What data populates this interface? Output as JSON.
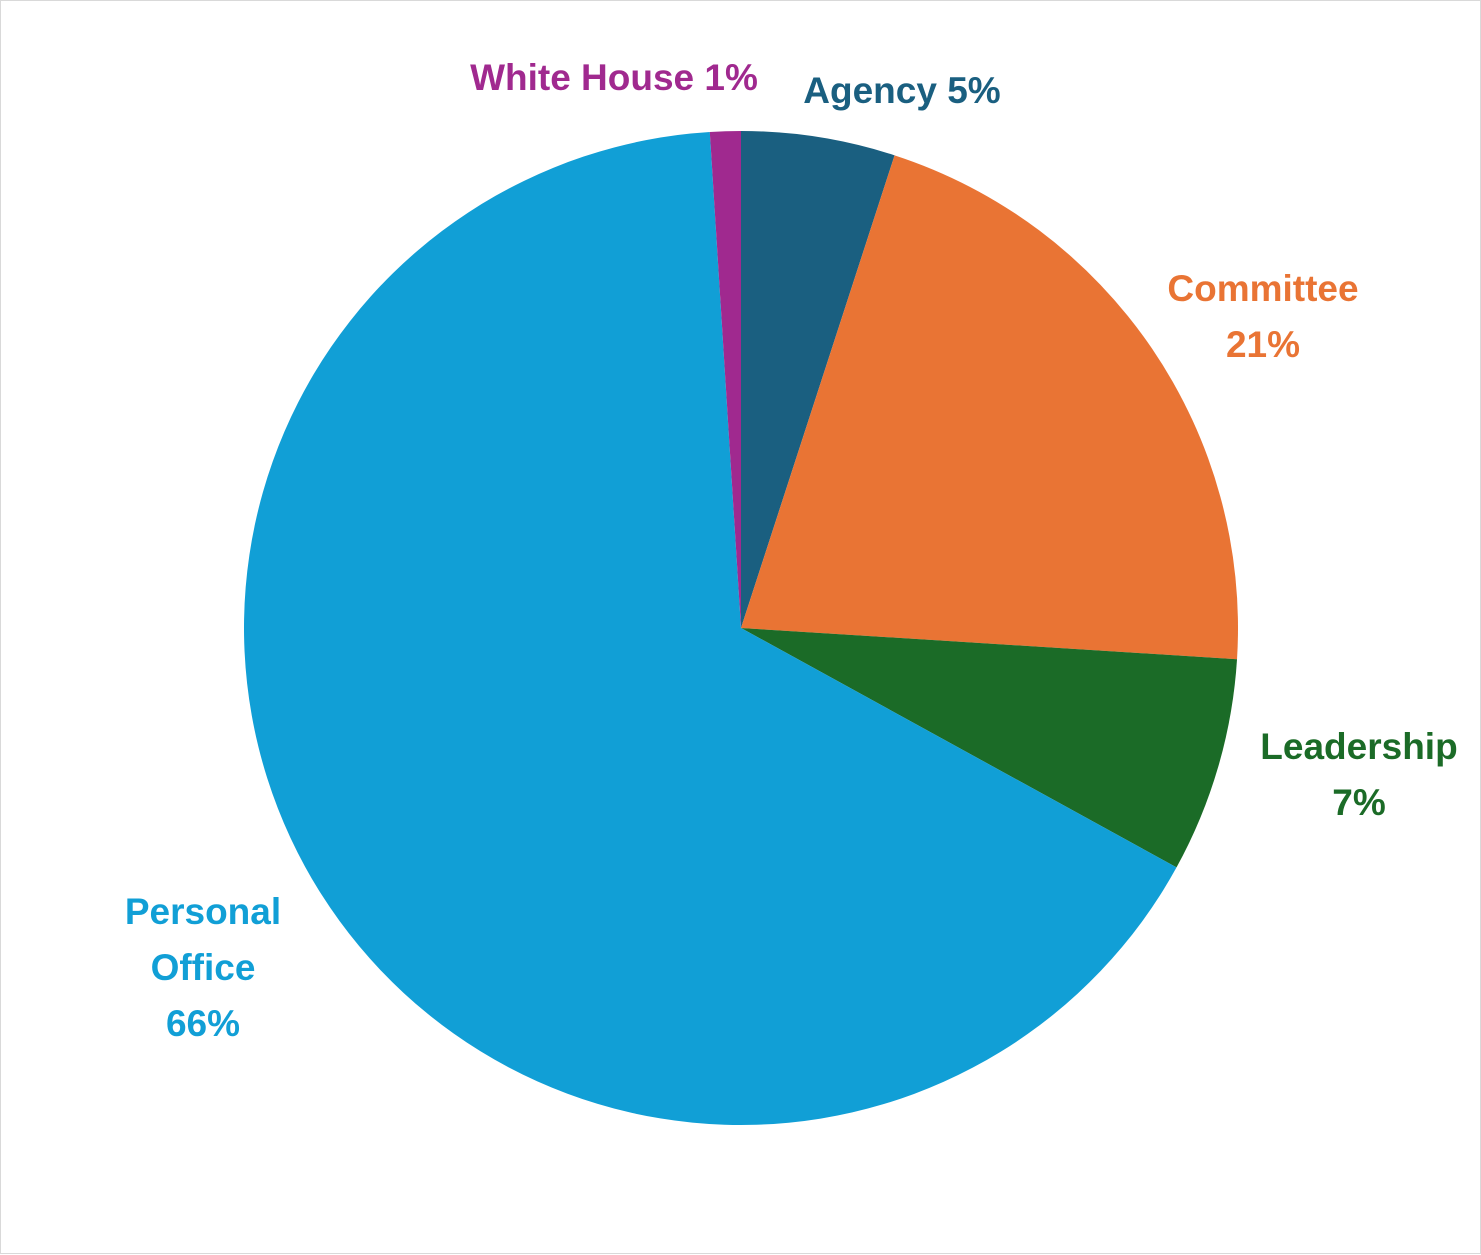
{
  "chart_data": {
    "type": "pie",
    "title": "",
    "slices": [
      {
        "name": "Agency",
        "value": 5,
        "pct_label": "5%",
        "color": "#1a5f80"
      },
      {
        "name": "Committee",
        "value": 21,
        "pct_label": "21%",
        "color": "#e97434"
      },
      {
        "name": "Leadership",
        "value": 7,
        "pct_label": "7%",
        "color": "#1b6b27"
      },
      {
        "name": "Personal Office",
        "value": 66,
        "pct_label": "66%",
        "color": "#119fd6"
      },
      {
        "name": "White House",
        "value": 1,
        "pct_label": "1%",
        "color": "#a0298f"
      }
    ],
    "legend": "none",
    "data_labels": true
  }
}
